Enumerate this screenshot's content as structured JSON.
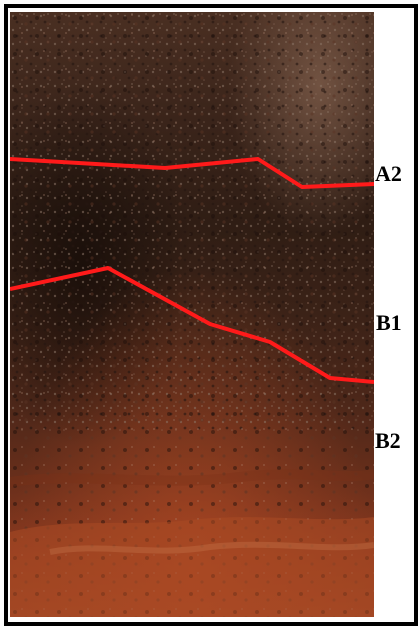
{
  "horizons": {
    "a2": "A2",
    "b1": "B1",
    "b2": "B2"
  },
  "colors": {
    "boundary_line": "#ff1a1a",
    "frame_border": "#000000",
    "soil_top": "#3a2418",
    "soil_middle": "#4a2c1c",
    "soil_lower": "#6b2e1a",
    "soil_bottom": "#9a3b20"
  }
}
